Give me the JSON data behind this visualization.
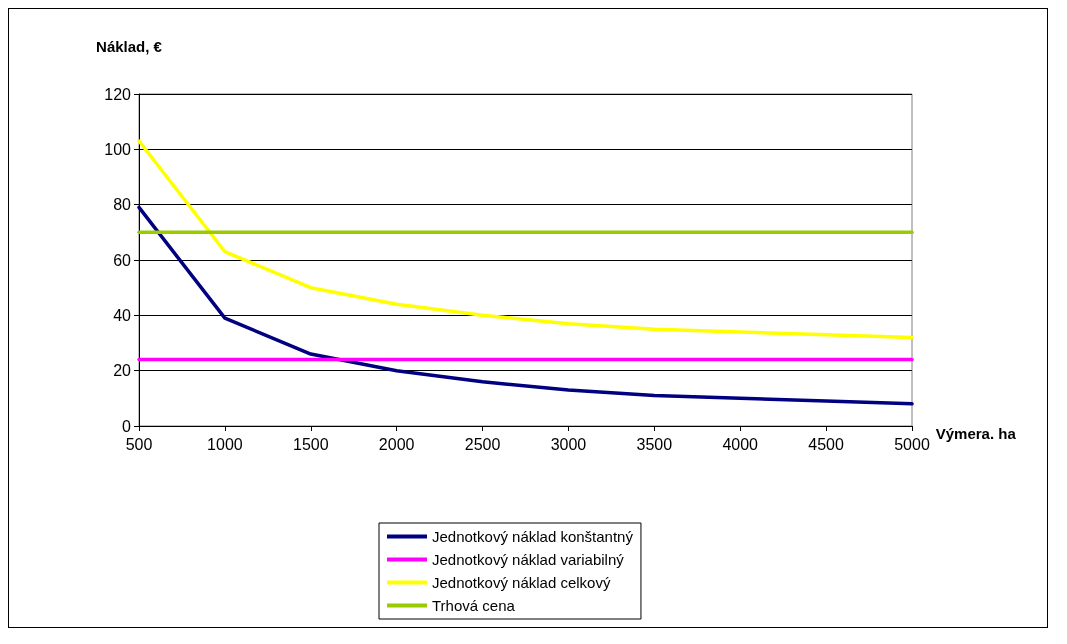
{
  "chart_data": {
    "type": "line",
    "xlabel": "Výmera. ha",
    "ylabel": "Náklad, €",
    "x": [
      500,
      1000,
      1500,
      2000,
      2500,
      3000,
      3500,
      4000,
      4500,
      5000
    ],
    "series": [
      {
        "name": "Jednotkový náklad konštantný",
        "color": "#000080",
        "values": [
          79,
          39,
          26,
          20,
          16,
          13,
          11,
          10,
          9,
          8
        ]
      },
      {
        "name": "Jednotkový náklad variabilný",
        "color": "#ff00ff",
        "values": [
          24,
          24,
          24,
          24,
          24,
          24,
          24,
          24,
          24,
          24
        ]
      },
      {
        "name": "Jednotkový náklad celkový",
        "color": "#ffff00",
        "values": [
          103,
          63,
          50,
          44,
          40,
          37,
          35,
          34,
          33,
          32
        ]
      },
      {
        "name": "Trhová cena",
        "color": "#99cc00",
        "values": [
          70,
          70,
          70,
          70,
          70,
          70,
          70,
          70,
          70,
          70
        ]
      }
    ],
    "xlim": [
      500,
      5000
    ],
    "xticks": [
      500,
      1000,
      1500,
      2000,
      2500,
      3000,
      3500,
      4000,
      4500,
      5000
    ],
    "ylim": [
      0,
      120
    ],
    "yticks": [
      0,
      20,
      40,
      60,
      80,
      100,
      120
    ],
    "grid": "y",
    "legend": "bottom",
    "marker": "none",
    "line_style": "solid"
  }
}
